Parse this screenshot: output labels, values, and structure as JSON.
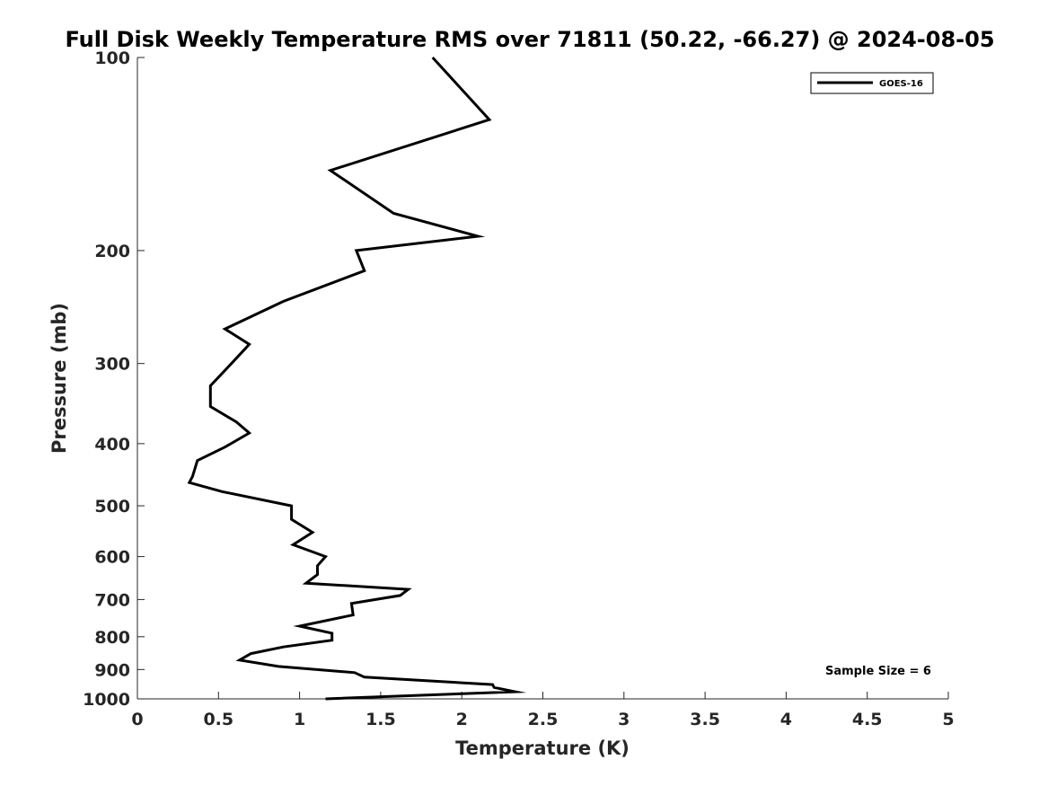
{
  "chart_data": {
    "type": "line",
    "title": "Full Disk Weekly Temperature RMS over 71811 (50.22, -66.27) @ 2024-08-05",
    "xlabel": "Temperature (K)",
    "ylabel": "Pressure (mb)",
    "xlim": [
      0,
      5
    ],
    "ylim": [
      100,
      1000
    ],
    "y_scale": "log",
    "y_reversed": true,
    "x_ticks": [
      "0",
      "0.5",
      "1",
      "1.5",
      "2",
      "2.5",
      "3",
      "3.5",
      "4",
      "4.5",
      "5"
    ],
    "x_tick_values": [
      0,
      0.5,
      1,
      1.5,
      2,
      2.5,
      3,
      3.5,
      4,
      4.5,
      5
    ],
    "y_ticks": [
      "100",
      "200",
      "300",
      "400",
      "500",
      "600",
      "700",
      "800",
      "900",
      "1000"
    ],
    "y_tick_values": [
      100,
      200,
      300,
      400,
      500,
      600,
      700,
      800,
      900,
      1000
    ],
    "grid": false,
    "legend_position": "top-right",
    "series": [
      {
        "name": "GOES-16",
        "color": "#000000",
        "x": [
          1.82,
          2.17,
          1.19,
          1.58,
          2.1,
          1.35,
          1.4,
          0.9,
          0.54,
          0.69,
          0.58,
          0.45,
          0.45,
          0.61,
          0.69,
          0.54,
          0.37,
          0.34,
          0.32,
          0.52,
          0.95,
          0.95,
          1.08,
          0.96,
          1.16,
          1.11,
          1.11,
          1.04,
          1.67,
          1.62,
          1.32,
          1.33,
          1.0,
          1.2,
          1.2,
          0.9,
          0.7,
          0.63,
          0.87,
          1.34,
          1.4,
          2.19,
          2.2,
          2.33,
          1.16
        ],
        "y": [
          100,
          125,
          150,
          175,
          190,
          200,
          215,
          240,
          265,
          280,
          300,
          325,
          350,
          370,
          385,
          405,
          425,
          450,
          460,
          475,
          500,
          525,
          550,
          575,
          600,
          620,
          640,
          660,
          675,
          690,
          710,
          740,
          770,
          790,
          810,
          830,
          850,
          870,
          890,
          910,
          925,
          950,
          960,
          975,
          1000
        ]
      }
    ],
    "annotation": "Sample Size = 6"
  }
}
